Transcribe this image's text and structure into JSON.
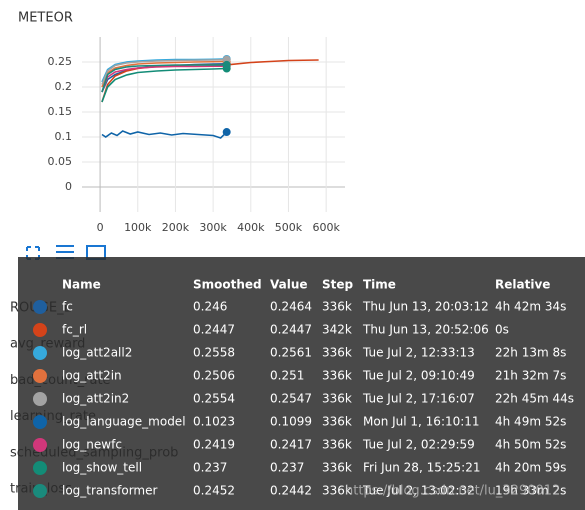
{
  "chart_data": {
    "type": "line",
    "title": "METEOR",
    "xlim": [
      -48000,
      650000
    ],
    "ylim": [
      -0.05,
      0.3
    ],
    "xticks": [
      0,
      {
        "value": 100000,
        "label": "100k"
      },
      {
        "value": 200000,
        "label": "200k"
      },
      {
        "value": 300000,
        "label": "300k"
      },
      {
        "value": 400000,
        "label": "400k"
      },
      {
        "value": 500000,
        "label": "500k"
      },
      {
        "value": 600000,
        "label": "600k"
      }
    ],
    "yticks": [
      0,
      0.05,
      0.1,
      0.15,
      0.2,
      0.25
    ],
    "grid": true,
    "series": [
      {
        "color": "#1f5f9e",
        "x": [
          5000,
          20000,
          40000,
          70000,
          100000,
          150000,
          200000,
          250000,
          300000,
          336000
        ],
        "values": [
          0.19,
          0.215,
          0.225,
          0.233,
          0.238,
          0.241,
          0.243,
          0.245,
          0.246,
          0.2464
        ]
      },
      {
        "color": "#d4431a",
        "x": [
          5000,
          20000,
          40000,
          70000,
          100000,
          150000,
          200000,
          250000,
          300000,
          342000,
          400000,
          450000,
          500000,
          580000
        ],
        "values": [
          0.17,
          0.205,
          0.222,
          0.232,
          0.237,
          0.241,
          0.243,
          0.244,
          0.2445,
          0.2447,
          0.249,
          0.251,
          0.253,
          0.254
        ]
      },
      {
        "color": "#36a9dc",
        "x": [
          5000,
          20000,
          40000,
          70000,
          100000,
          150000,
          200000,
          250000,
          300000,
          336000
        ],
        "values": [
          0.21,
          0.235,
          0.245,
          0.25,
          0.252,
          0.254,
          0.255,
          0.255,
          0.2555,
          0.2561
        ]
      },
      {
        "color": "#e2713d",
        "x": [
          5000,
          20000,
          40000,
          70000,
          100000,
          150000,
          200000,
          250000,
          300000,
          336000
        ],
        "values": [
          0.2,
          0.228,
          0.238,
          0.243,
          0.246,
          0.248,
          0.249,
          0.25,
          0.2505,
          0.251
        ]
      },
      {
        "color": "#a3a3a3",
        "x": [
          5000,
          20000,
          40000,
          70000,
          100000,
          150000,
          200000,
          250000,
          300000,
          336000
        ],
        "values": [
          0.205,
          0.232,
          0.243,
          0.248,
          0.25,
          0.252,
          0.253,
          0.2535,
          0.254,
          0.2547
        ]
      },
      {
        "color": "#0f64a8",
        "x": [
          5000,
          15000,
          30000,
          45000,
          60000,
          80000,
          100000,
          130000,
          160000,
          190000,
          220000,
          260000,
          300000,
          320000,
          336000
        ],
        "values": [
          0.105,
          0.1,
          0.108,
          0.103,
          0.112,
          0.106,
          0.11,
          0.105,
          0.108,
          0.104,
          0.107,
          0.105,
          0.103,
          0.098,
          0.1099
        ]
      },
      {
        "color": "#d1377a",
        "x": [
          5000,
          20000,
          40000,
          70000,
          100000,
          150000,
          200000,
          250000,
          300000,
          336000
        ],
        "values": [
          0.19,
          0.22,
          0.23,
          0.235,
          0.238,
          0.24,
          0.241,
          0.241,
          0.2415,
          0.2417
        ]
      },
      {
        "color": "#138c77",
        "x": [
          5000,
          20000,
          40000,
          70000,
          100000,
          150000,
          200000,
          250000,
          300000,
          336000
        ],
        "values": [
          0.17,
          0.2,
          0.215,
          0.224,
          0.229,
          0.232,
          0.234,
          0.235,
          0.236,
          0.237
        ]
      },
      {
        "color": "#1a8a7c",
        "x": [
          5000,
          20000,
          40000,
          70000,
          100000,
          150000,
          200000,
          250000,
          300000,
          336000
        ],
        "values": [
          0.19,
          0.225,
          0.235,
          0.24,
          0.242,
          0.243,
          0.244,
          0.244,
          0.2442,
          0.2442
        ]
      }
    ]
  },
  "sidebar": [
    "ROUGE_L",
    "avg_reward",
    "bad_count_rate",
    "learning_rate",
    "scheduled_sampling_prob",
    "train_loss"
  ],
  "table": {
    "header": [
      "Name",
      "Smoothed",
      "Value",
      "Step",
      "Time",
      "Relative"
    ],
    "rows": [
      [
        "fc",
        "0.246",
        "0.2464",
        "336k",
        "Thu Jun 13, 20:03:12",
        "4h 42m 34s"
      ],
      [
        "fc_rl",
        "0.2447",
        "0.2447",
        "342k",
        "Thu Jun 13, 20:52:06",
        "0s"
      ],
      [
        "log_att2all2",
        "0.2558",
        "0.2561",
        "336k",
        "Tue Jul 2, 12:33:13",
        "22h 13m 8s"
      ],
      [
        "log_att2in",
        "0.2506",
        "0.251",
        "336k",
        "Tue Jul 2, 09:10:49",
        "21h 32m 7s"
      ],
      [
        "log_att2in2",
        "0.2554",
        "0.2547",
        "336k",
        "Tue Jul 2, 17:16:07",
        "22h 45m 44s"
      ],
      [
        "log_language_model",
        "0.1023",
        "0.1099",
        "336k",
        "Mon Jul 1, 16:10:11",
        "4h 49m 52s"
      ],
      [
        "log_newfc",
        "0.2419",
        "0.2417",
        "336k",
        "Tue Jul 2, 02:29:59",
        "4h 50m 52s"
      ],
      [
        "log_show_tell",
        "0.237",
        "0.237",
        "336k",
        "Fri Jun 28, 15:25:21",
        "4h 20m 59s"
      ],
      [
        "log_transformer",
        "0.2452",
        "0.2442",
        "336k",
        "Tue Jul 2, 13:02:32",
        "19h 33m 2s"
      ]
    ]
  },
  "watermark": "https://blog.csdn.net/lu_3290012"
}
